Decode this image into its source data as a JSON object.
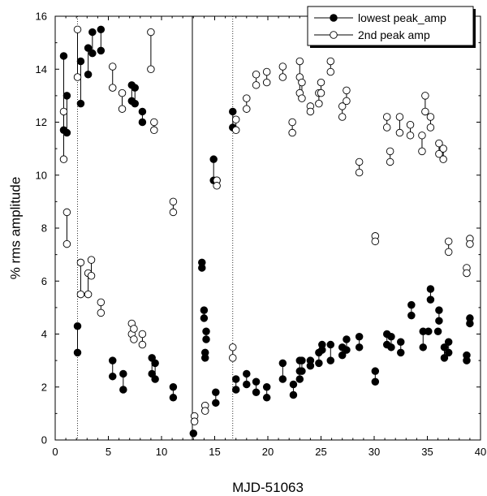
{
  "chart_data": {
    "type": "scatter",
    "xlabel": "MJD-51063",
    "ylabel": "% rms amplitude",
    "xlim": [
      0,
      40
    ],
    "ylim": [
      0,
      16
    ],
    "xticks": [
      0,
      5,
      10,
      15,
      20,
      25,
      30,
      35,
      40
    ],
    "yticks": [
      0,
      2,
      4,
      6,
      8,
      10,
      12,
      14,
      16
    ],
    "legend_position": "top-right",
    "series": [
      {
        "name": "lowest peak_amp",
        "marker": "filled-circle",
        "points": [
          [
            0.8,
            14.5
          ],
          [
            0.8,
            11.7
          ],
          [
            1.1,
            13.0
          ],
          [
            1.1,
            11.6
          ],
          [
            2.1,
            4.3
          ],
          [
            2.1,
            3.3
          ],
          [
            2.4,
            14.3
          ],
          [
            2.4,
            12.7
          ],
          [
            3.1,
            14.8
          ],
          [
            3.1,
            13.8
          ],
          [
            3.5,
            15.4
          ],
          [
            3.5,
            14.6
          ],
          [
            4.3,
            15.5
          ],
          [
            4.3,
            14.7
          ],
          [
            5.4,
            3.0
          ],
          [
            5.4,
            2.4
          ],
          [
            6.4,
            2.5
          ],
          [
            6.4,
            1.9
          ],
          [
            7.2,
            13.4
          ],
          [
            7.2,
            12.8
          ],
          [
            7.5,
            13.3
          ],
          [
            7.5,
            12.7
          ],
          [
            8.2,
            12.4
          ],
          [
            8.2,
            12.0
          ],
          [
            9.1,
            3.1
          ],
          [
            9.1,
            2.5
          ],
          [
            9.4,
            2.9
          ],
          [
            9.4,
            2.3
          ],
          [
            11.1,
            2.0
          ],
          [
            11.1,
            1.6
          ],
          [
            13.0,
            0.25
          ],
          [
            13.8,
            6.7
          ],
          [
            13.8,
            6.5
          ],
          [
            14.0,
            4.9
          ],
          [
            14.0,
            4.6
          ],
          [
            14.2,
            4.1
          ],
          [
            14.2,
            3.8
          ],
          [
            14.1,
            3.3
          ],
          [
            14.1,
            3.1
          ],
          [
            14.9,
            10.6
          ],
          [
            14.9,
            9.8
          ],
          [
            15.2,
            9.8
          ],
          [
            15.1,
            1.8
          ],
          [
            15.1,
            1.4
          ],
          [
            16.7,
            12.4
          ],
          [
            16.7,
            11.8
          ],
          [
            17.0,
            2.3
          ],
          [
            17.0,
            1.9
          ],
          [
            18.0,
            2.5
          ],
          [
            18.0,
            2.1
          ],
          [
            18.9,
            2.2
          ],
          [
            18.9,
            1.8
          ],
          [
            19.9,
            2.0
          ],
          [
            19.9,
            1.6
          ],
          [
            21.4,
            2.9
          ],
          [
            21.4,
            2.3
          ],
          [
            22.4,
            2.1
          ],
          [
            22.4,
            1.7
          ],
          [
            23.0,
            3.0
          ],
          [
            23.0,
            2.6
          ],
          [
            23.0,
            2.3
          ],
          [
            23.2,
            3.0
          ],
          [
            23.2,
            2.6
          ],
          [
            24.0,
            3.0
          ],
          [
            24.0,
            2.8
          ],
          [
            24.8,
            3.3
          ],
          [
            24.8,
            2.9
          ],
          [
            25.1,
            3.6
          ],
          [
            25.1,
            3.4
          ],
          [
            25.9,
            3.6
          ],
          [
            25.9,
            3.0
          ],
          [
            27.0,
            3.5
          ],
          [
            27.0,
            3.2
          ],
          [
            27.4,
            3.8
          ],
          [
            27.4,
            3.4
          ],
          [
            28.6,
            3.9
          ],
          [
            28.6,
            3.5
          ],
          [
            30.1,
            2.6
          ],
          [
            30.1,
            2.2
          ],
          [
            31.2,
            4.0
          ],
          [
            31.2,
            3.6
          ],
          [
            31.6,
            3.9
          ],
          [
            31.6,
            3.5
          ],
          [
            32.5,
            3.7
          ],
          [
            32.5,
            3.3
          ],
          [
            33.5,
            5.1
          ],
          [
            33.5,
            4.7
          ],
          [
            34.6,
            4.1
          ],
          [
            34.6,
            3.5
          ],
          [
            35.3,
            5.7
          ],
          [
            35.3,
            5.3
          ],
          [
            35.1,
            4.1
          ],
          [
            36.1,
            4.9
          ],
          [
            36.1,
            4.5
          ],
          [
            36.0,
            4.1
          ],
          [
            36.6,
            3.5
          ],
          [
            36.6,
            3.1
          ],
          [
            37.0,
            3.7
          ],
          [
            37.0,
            3.3
          ],
          [
            38.7,
            3.2
          ],
          [
            38.7,
            3.0
          ],
          [
            39.0,
            4.6
          ],
          [
            39.0,
            4.4
          ]
        ]
      },
      {
        "name": "2nd peak amp",
        "marker": "open-circle",
        "points": [
          [
            0.8,
            12.4
          ],
          [
            0.8,
            10.6
          ],
          [
            1.1,
            8.6
          ],
          [
            1.1,
            7.4
          ],
          [
            2.1,
            15.5
          ],
          [
            2.1,
            13.7
          ],
          [
            2.4,
            6.7
          ],
          [
            2.4,
            5.5
          ],
          [
            3.1,
            6.3
          ],
          [
            3.1,
            5.5
          ],
          [
            3.4,
            6.8
          ],
          [
            3.4,
            6.2
          ],
          [
            4.3,
            5.2
          ],
          [
            4.3,
            4.8
          ],
          [
            5.4,
            14.1
          ],
          [
            5.4,
            13.3
          ],
          [
            6.3,
            13.1
          ],
          [
            6.3,
            12.5
          ],
          [
            7.2,
            4.4
          ],
          [
            7.2,
            4.0
          ],
          [
            7.4,
            4.2
          ],
          [
            7.4,
            3.8
          ],
          [
            8.2,
            4.0
          ],
          [
            8.2,
            3.6
          ],
          [
            9.0,
            15.4
          ],
          [
            9.0,
            14.0
          ],
          [
            9.3,
            12.0
          ],
          [
            9.3,
            11.7
          ],
          [
            11.1,
            9.0
          ],
          [
            11.1,
            8.6
          ],
          [
            13.1,
            0.9
          ],
          [
            13.1,
            0.7
          ],
          [
            14.1,
            1.3
          ],
          [
            14.1,
            1.1
          ],
          [
            15.2,
            9.8
          ],
          [
            15.2,
            9.6
          ],
          [
            16.7,
            3.5
          ],
          [
            16.7,
            3.1
          ],
          [
            17.0,
            12.1
          ],
          [
            17.0,
            11.7
          ],
          [
            18.0,
            12.9
          ],
          [
            18.0,
            12.5
          ],
          [
            18.9,
            13.8
          ],
          [
            18.9,
            13.4
          ],
          [
            19.9,
            13.9
          ],
          [
            19.9,
            13.5
          ],
          [
            21.4,
            14.1
          ],
          [
            21.4,
            13.7
          ],
          [
            22.3,
            12.0
          ],
          [
            22.3,
            11.6
          ],
          [
            23.0,
            14.3
          ],
          [
            23.0,
            13.7
          ],
          [
            23.0,
            13.1
          ],
          [
            23.2,
            13.5
          ],
          [
            23.2,
            12.9
          ],
          [
            24.0,
            12.6
          ],
          [
            24.0,
            12.4
          ],
          [
            24.8,
            13.1
          ],
          [
            24.8,
            12.7
          ],
          [
            25.0,
            13.5
          ],
          [
            25.0,
            13.1
          ],
          [
            25.9,
            14.3
          ],
          [
            25.9,
            13.9
          ],
          [
            27.0,
            12.6
          ],
          [
            27.0,
            12.2
          ],
          [
            27.4,
            13.2
          ],
          [
            27.4,
            12.8
          ],
          [
            28.6,
            10.5
          ],
          [
            28.6,
            10.1
          ],
          [
            30.1,
            7.7
          ],
          [
            30.1,
            7.5
          ],
          [
            31.2,
            12.2
          ],
          [
            31.2,
            11.8
          ],
          [
            31.5,
            10.9
          ],
          [
            31.5,
            10.5
          ],
          [
            32.4,
            12.2
          ],
          [
            32.4,
            11.6
          ],
          [
            33.4,
            11.9
          ],
          [
            33.4,
            11.5
          ],
          [
            34.5,
            11.5
          ],
          [
            34.5,
            10.9
          ],
          [
            34.8,
            13.0
          ],
          [
            34.8,
            12.4
          ],
          [
            35.3,
            12.2
          ],
          [
            35.3,
            11.8
          ],
          [
            36.1,
            11.2
          ],
          [
            36.1,
            10.8
          ],
          [
            36.5,
            11.0
          ],
          [
            36.5,
            10.6
          ],
          [
            37.0,
            7.5
          ],
          [
            37.0,
            7.1
          ],
          [
            38.7,
            6.5
          ],
          [
            38.7,
            6.3
          ],
          [
            39.0,
            7.6
          ],
          [
            39.0,
            7.4
          ]
        ]
      }
    ],
    "pair_links": [
      [
        0.8,
        14.5,
        11.7
      ],
      [
        1.1,
        13.0,
        11.6
      ],
      [
        2.1,
        4.3,
        3.3
      ],
      [
        2.4,
        14.3,
        12.7
      ],
      [
        3.1,
        14.8,
        13.8
      ],
      [
        3.5,
        15.4,
        14.6
      ],
      [
        4.3,
        15.5,
        14.7
      ],
      [
        5.4,
        3.0,
        2.4
      ],
      [
        6.4,
        2.5,
        1.9
      ],
      [
        7.2,
        13.4,
        12.8
      ],
      [
        7.5,
        13.3,
        12.7
      ],
      [
        8.2,
        12.4,
        12.0
      ],
      [
        9.1,
        3.1,
        2.5
      ],
      [
        9.4,
        2.9,
        2.3
      ],
      [
        11.1,
        2.0,
        1.6
      ],
      [
        13.8,
        6.7,
        6.5
      ],
      [
        14.0,
        4.9,
        4.6
      ],
      [
        14.2,
        4.1,
        3.8
      ],
      [
        14.1,
        3.3,
        3.1
      ],
      [
        14.9,
        10.6,
        9.8
      ],
      [
        15.1,
        1.8,
        1.4
      ],
      [
        16.7,
        12.4,
        11.8
      ],
      [
        17.0,
        2.3,
        1.9
      ],
      [
        18.0,
        2.5,
        2.1
      ],
      [
        18.9,
        2.2,
        1.8
      ],
      [
        19.9,
        2.0,
        1.6
      ],
      [
        21.4,
        2.9,
        2.3
      ],
      [
        22.4,
        2.1,
        1.7
      ],
      [
        23.0,
        3.0,
        2.3
      ],
      [
        23.2,
        3.0,
        2.6
      ],
      [
        24.0,
        3.0,
        2.8
      ],
      [
        24.8,
        3.3,
        2.9
      ],
      [
        25.1,
        3.6,
        3.4
      ],
      [
        25.9,
        3.6,
        3.0
      ],
      [
        27.0,
        3.5,
        3.2
      ],
      [
        27.4,
        3.8,
        3.4
      ],
      [
        28.6,
        3.9,
        3.5
      ],
      [
        30.1,
        2.6,
        2.2
      ],
      [
        31.2,
        4.0,
        3.6
      ],
      [
        31.6,
        3.9,
        3.5
      ],
      [
        32.5,
        3.7,
        3.3
      ],
      [
        33.5,
        5.1,
        4.7
      ],
      [
        34.6,
        4.1,
        3.5
      ],
      [
        35.3,
        5.7,
        5.3
      ],
      [
        36.1,
        4.9,
        4.5
      ],
      [
        36.6,
        3.5,
        3.1
      ],
      [
        37.0,
        3.7,
        3.3
      ],
      [
        38.7,
        3.2,
        3.0
      ],
      [
        39.0,
        4.6,
        4.4
      ],
      [
        0.8,
        12.4,
        10.6
      ],
      [
        1.1,
        8.6,
        7.4
      ],
      [
        2.1,
        15.5,
        13.7
      ],
      [
        2.4,
        6.7,
        5.5
      ],
      [
        3.1,
        6.3,
        5.5
      ],
      [
        3.4,
        6.8,
        6.2
      ],
      [
        4.3,
        5.2,
        4.8
      ],
      [
        5.4,
        14.1,
        13.3
      ],
      [
        6.3,
        13.1,
        12.5
      ],
      [
        7.2,
        4.4,
        4.0
      ],
      [
        7.4,
        4.2,
        3.8
      ],
      [
        8.2,
        4.0,
        3.6
      ],
      [
        9.0,
        15.4,
        14.0
      ],
      [
        9.3,
        12.0,
        11.7
      ],
      [
        11.1,
        9.0,
        8.6
      ],
      [
        13.1,
        0.9,
        0.7
      ],
      [
        14.1,
        1.3,
        1.1
      ],
      [
        15.2,
        9.8,
        9.6
      ],
      [
        16.7,
        3.5,
        3.1
      ],
      [
        17.0,
        12.1,
        11.7
      ],
      [
        18.0,
        12.9,
        12.5
      ],
      [
        18.9,
        13.8,
        13.4
      ],
      [
        19.9,
        13.9,
        13.5
      ],
      [
        21.4,
        14.1,
        13.7
      ],
      [
        22.3,
        12.0,
        11.6
      ],
      [
        23.0,
        14.3,
        13.1
      ],
      [
        23.2,
        13.5,
        12.9
      ],
      [
        24.0,
        12.6,
        12.4
      ],
      [
        24.8,
        13.1,
        12.7
      ],
      [
        25.0,
        13.5,
        13.1
      ],
      [
        25.9,
        14.3,
        13.9
      ],
      [
        27.0,
        12.6,
        12.2
      ],
      [
        27.4,
        13.2,
        12.8
      ],
      [
        28.6,
        10.5,
        10.1
      ],
      [
        30.1,
        7.7,
        7.5
      ],
      [
        31.2,
        12.2,
        11.8
      ],
      [
        31.5,
        10.9,
        10.5
      ],
      [
        32.4,
        12.2,
        11.6
      ],
      [
        33.4,
        11.9,
        11.5
      ],
      [
        34.5,
        11.5,
        10.9
      ],
      [
        34.8,
        13.0,
        12.4
      ],
      [
        35.3,
        12.2,
        11.8
      ],
      [
        36.1,
        11.2,
        10.8
      ],
      [
        36.5,
        11.0,
        10.6
      ],
      [
        37.0,
        7.5,
        7.1
      ],
      [
        38.7,
        6.5,
        6.3
      ],
      [
        39.0,
        7.6,
        7.4
      ]
    ],
    "reference_lines": [
      {
        "x": 2.1,
        "style": "dotted"
      },
      {
        "x": 12.9,
        "style": "solid"
      },
      {
        "x": 16.7,
        "style": "dotted"
      }
    ]
  }
}
